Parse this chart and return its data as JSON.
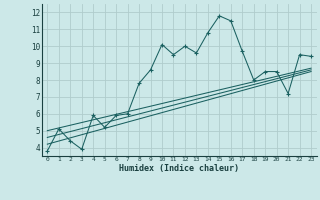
{
  "xlabel": "Humidex (Indice chaleur)",
  "xlim": [
    -0.5,
    23.5
  ],
  "ylim": [
    3.5,
    12.5
  ],
  "xticks": [
    0,
    1,
    2,
    3,
    4,
    5,
    6,
    7,
    8,
    9,
    10,
    11,
    12,
    13,
    14,
    15,
    16,
    17,
    18,
    19,
    20,
    21,
    22,
    23
  ],
  "yticks": [
    4,
    5,
    6,
    7,
    8,
    9,
    10,
    11,
    12
  ],
  "bg_color": "#cce8e8",
  "grid_color": "#b0cccc",
  "line_color": "#1a6060",
  "line1_x": [
    0,
    1,
    2,
    3,
    4,
    5,
    6,
    7,
    8,
    9,
    10,
    11,
    12,
    13,
    14,
    15,
    16,
    17,
    18,
    19,
    20,
    21,
    22,
    23
  ],
  "line1_y": [
    3.8,
    5.1,
    4.4,
    3.9,
    5.9,
    5.2,
    5.9,
    6.0,
    7.8,
    8.6,
    10.1,
    9.5,
    10.0,
    9.6,
    10.8,
    11.8,
    11.5,
    9.7,
    8.0,
    8.5,
    8.5,
    7.2,
    9.5,
    9.4
  ],
  "line2_x": [
    0,
    23
  ],
  "line2_y": [
    4.2,
    8.5
  ],
  "line3_x": [
    0,
    23
  ],
  "line3_y": [
    4.6,
    8.6
  ],
  "line4_x": [
    0,
    23
  ],
  "line4_y": [
    5.0,
    8.7
  ]
}
